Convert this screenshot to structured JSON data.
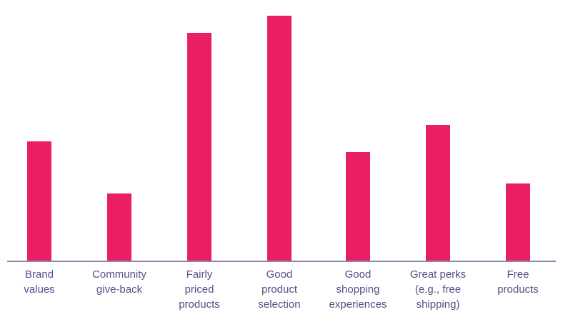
{
  "chart_data": {
    "type": "bar",
    "title": "",
    "xlabel": "",
    "ylabel": "",
    "categories": [
      [
        "Brand",
        "values"
      ],
      [
        "Community",
        "give-back"
      ],
      [
        "Fairly",
        "priced",
        "products"
      ],
      [
        "Good",
        "product",
        "selection"
      ],
      [
        "Good",
        "shopping",
        "experiences"
      ],
      [
        "Great perks",
        "(e.g., free",
        "shipping)"
      ],
      [
        "Free",
        "products"
      ]
    ],
    "values": [
      168,
      95,
      320,
      344,
      153,
      191,
      109
    ],
    "ylim": [
      0,
      344
    ],
    "grid": false,
    "legend": "none",
    "bar_color": "#e91e63",
    "axis_color": "#8c88b0",
    "label_color": "#5b4b86"
  }
}
